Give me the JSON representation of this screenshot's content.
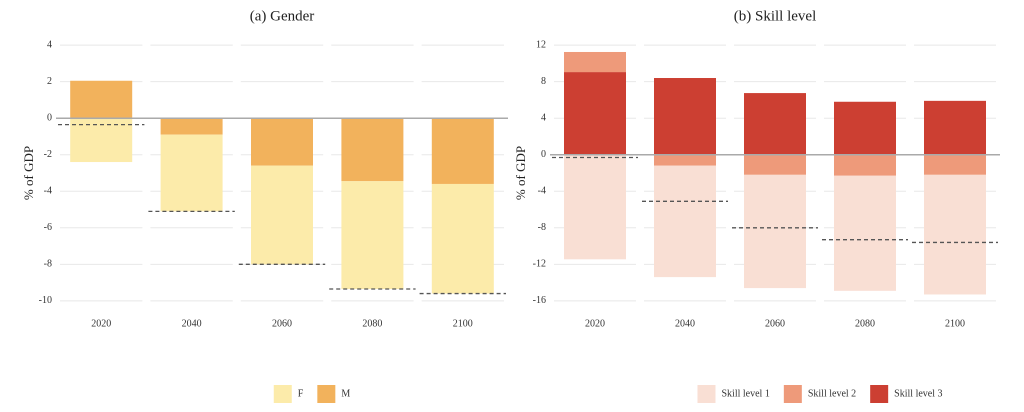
{
  "chart_data": [
    {
      "type": "bar",
      "title": "(a) Gender",
      "ylabel": "% of GDP",
      "categories": [
        "2020",
        "2040",
        "2060",
        "2080",
        "2100"
      ],
      "series": [
        {
          "name": "F",
          "color": "#fcebaa",
          "values": [
            -2.4,
            -4.2,
            -5.4,
            -5.9,
            -6.0
          ]
        },
        {
          "name": "M",
          "color": "#f2b25c",
          "values": [
            2.05,
            -0.9,
            -2.6,
            -3.45,
            -3.6
          ]
        }
      ],
      "net": [
        -0.35,
        -5.1,
        -8.0,
        -9.35,
        -9.6
      ],
      "ylim": [
        -10.5,
        4.5
      ],
      "yticks": [
        -10,
        -8,
        -6,
        -4,
        -2,
        0,
        2,
        4
      ],
      "grid": true,
      "legend": "bottom"
    },
    {
      "type": "bar",
      "title": "(b) Skill level",
      "ylabel": "% of GDP",
      "categories": [
        "2020",
        "2040",
        "2060",
        "2080",
        "2100"
      ],
      "series": [
        {
          "name": "Skill level 1",
          "color": "#f9dfd4",
          "values": [
            -11.45,
            -12.2,
            -12.4,
            -12.6,
            -13.1
          ]
        },
        {
          "name": "Skill level 2",
          "color": "#ee9a7a",
          "values": [
            2.2,
            -1.2,
            -2.2,
            -2.3,
            -2.2
          ]
        },
        {
          "name": "Skill level 3",
          "color": "#cc3f32",
          "values": [
            9.05,
            8.4,
            6.75,
            5.8,
            5.9
          ]
        }
      ],
      "net": [
        -0.3,
        -5.1,
        -8.0,
        -9.3,
        -9.6
      ],
      "ylim": [
        -17,
        13
      ],
      "yticks": [
        -16,
        -12,
        -8,
        -4,
        0,
        4,
        8,
        12
      ],
      "grid": true,
      "legend": "bottom"
    }
  ]
}
